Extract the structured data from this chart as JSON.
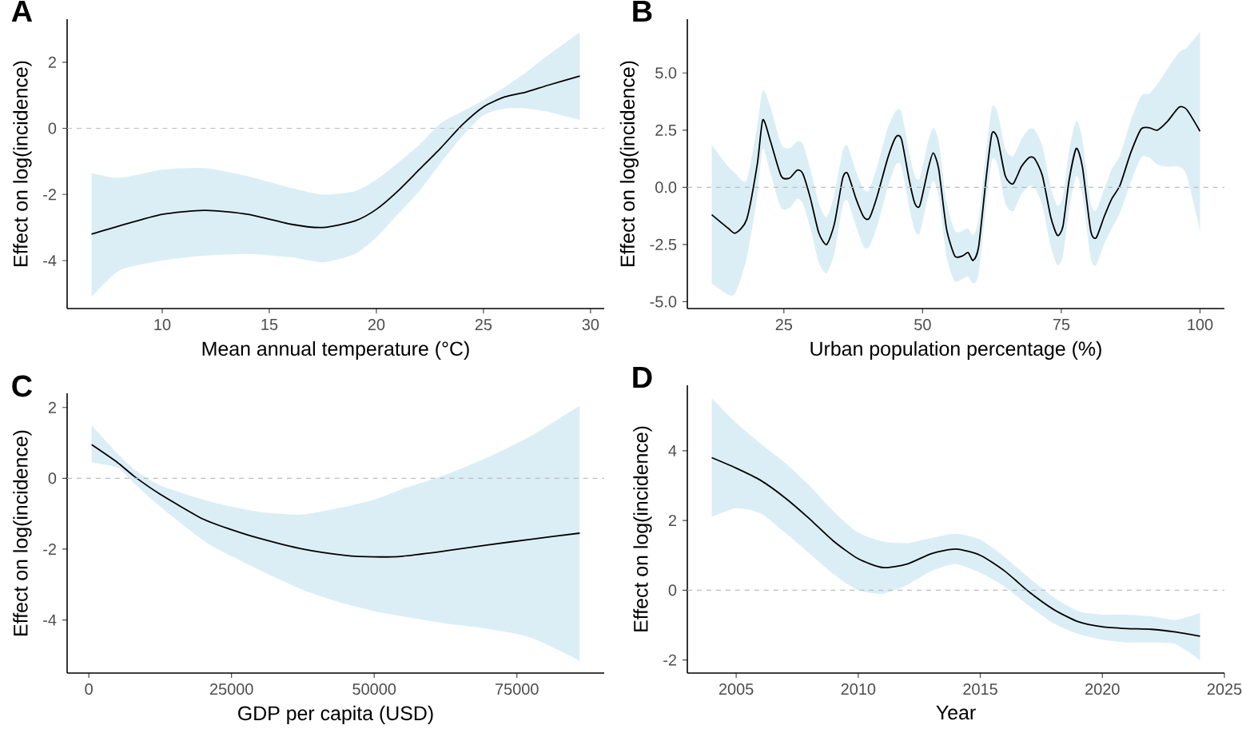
{
  "chart_data": [
    {
      "type": "line",
      "title": "A",
      "xlabel": "Mean annual temperature (°C)",
      "ylabel": "Effect on log(incidence)",
      "xlim": [
        5.56,
        30.64
      ],
      "ylim": [
        -5.45,
        3.3
      ],
      "xticks": [
        10,
        15,
        20,
        25,
        30
      ],
      "yticks": [
        -4,
        -2,
        0,
        2
      ],
      "ref_lines": [
        {
          "axis": "y",
          "value": 0,
          "color": "#bdbdbd",
          "line_style": "dashed"
        }
      ],
      "x": [
        6.7,
        8,
        10,
        12,
        14,
        16,
        17.5,
        19,
        20,
        21,
        22,
        23,
        24,
        25,
        26,
        27,
        28,
        29.5
      ],
      "series": [
        {
          "color": "#000000",
          "values": [
            -3.2,
            -2.95,
            -2.6,
            -2.48,
            -2.6,
            -2.9,
            -3.0,
            -2.8,
            -2.45,
            -1.9,
            -1.25,
            -0.6,
            0.1,
            0.65,
            0.95,
            1.1,
            1.3,
            1.58
          ],
          "upper": [
            -1.35,
            -1.5,
            -1.25,
            -1.2,
            -1.45,
            -1.8,
            -2.0,
            -1.9,
            -1.55,
            -1.05,
            -0.5,
            0.15,
            0.5,
            0.85,
            1.25,
            1.7,
            2.2,
            2.9
          ],
          "lower": [
            -5.1,
            -4.3,
            -4.0,
            -3.85,
            -3.8,
            -3.9,
            -4.05,
            -3.8,
            -3.3,
            -2.6,
            -1.9,
            -1.05,
            -0.25,
            0.4,
            0.6,
            0.6,
            0.5,
            0.25
          ]
        }
      ]
    },
    {
      "type": "line",
      "title": "B",
      "xlabel": "Urban population percentage (%)",
      "ylabel": "Effect on log(incidence)",
      "xlim": [
        7.6,
        104.4
      ],
      "ylim": [
        -5.3,
        7.35
      ],
      "xticks": [
        25,
        50,
        75,
        100
      ],
      "yticks": [
        {
          "value": -5,
          "label": "-5.0"
        },
        {
          "value": -2.5,
          "label": "-2.5"
        },
        {
          "value": 0,
          "label": "0.0"
        },
        {
          "value": 2.5,
          "label": "2.5"
        },
        {
          "value": 5,
          "label": "5.0"
        }
      ],
      "ref_lines": [
        {
          "axis": "y",
          "value": 0,
          "color": "#bdbdbd",
          "line_style": "dashed"
        }
      ],
      "x": [
        12,
        15,
        16.3,
        18.3,
        20.2,
        21.2,
        22.6,
        24.5,
        26,
        27.4,
        28.4,
        29.8,
        31.3,
        32.7,
        34.1,
        35.6,
        36.5,
        38,
        39.4,
        40.4,
        41.8,
        43.75,
        45.2,
        46.2,
        47.6,
        48.6,
        49.5,
        51,
        51.9,
        52.9,
        54.3,
        55.8,
        57.2,
        58.2,
        59.1,
        60.1,
        61.5,
        62.5,
        63.5,
        64.9,
        66.3,
        67.8,
        69.2,
        70.2,
        71.6,
        73.1,
        74.3,
        75.3,
        76.4,
        77.7,
        78.8,
        80.3,
        81.3,
        82.7,
        84.1,
        85.6,
        87.5,
        89.4,
        90.9,
        92.3,
        94.2,
        96.2,
        97.6,
        100
      ],
      "series": [
        {
          "color": "#000000",
          "values": [
            -1.2,
            -1.8,
            -2.0,
            -1.4,
            1.0,
            2.95,
            2.0,
            0.5,
            0.4,
            0.75,
            0.6,
            -0.5,
            -2.0,
            -2.5,
            -1.6,
            0.4,
            0.6,
            -0.5,
            -1.3,
            -1.35,
            -0.4,
            1.3,
            2.2,
            2.1,
            0.3,
            -0.7,
            -0.8,
            0.8,
            1.5,
            0.8,
            -1.8,
            -3.0,
            -3.0,
            -2.85,
            -3.2,
            -2.6,
            0.5,
            2.35,
            2.15,
            0.5,
            0.15,
            0.9,
            1.3,
            1.25,
            0.5,
            -1.3,
            -2.1,
            -1.7,
            0.3,
            1.7,
            0.9,
            -1.9,
            -2.2,
            -1.3,
            -0.5,
            0.1,
            1.5,
            2.55,
            2.6,
            2.5,
            2.9,
            3.5,
            3.4,
            2.45
          ],
          "upper": [
            1.85,
            0.9,
            0.6,
            0.3,
            2.7,
            4.25,
            3.5,
            1.9,
            1.7,
            2.0,
            1.9,
            0.8,
            -0.7,
            -1.3,
            -0.3,
            1.6,
            1.8,
            0.7,
            -0.1,
            -0.1,
            0.9,
            2.6,
            3.35,
            3.3,
            1.5,
            0.5,
            0.4,
            2.0,
            2.6,
            2.0,
            -0.6,
            -1.9,
            -1.9,
            -1.8,
            -2.1,
            -1.4,
            1.7,
            3.5,
            3.3,
            1.7,
            1.35,
            2.1,
            2.55,
            2.5,
            1.8,
            0.0,
            -0.8,
            -0.4,
            1.6,
            2.9,
            2.1,
            -0.7,
            -1.0,
            -0.1,
            0.8,
            1.4,
            2.9,
            4.0,
            4.1,
            4.5,
            5.2,
            5.9,
            6.1,
            6.8
          ],
          "lower": [
            -4.2,
            -4.7,
            -4.6,
            -3.1,
            -0.4,
            1.7,
            0.6,
            -0.9,
            -0.9,
            -0.5,
            -0.7,
            -1.8,
            -3.3,
            -3.75,
            -2.9,
            -0.8,
            -0.6,
            -1.7,
            -2.6,
            -2.6,
            -1.7,
            0.0,
            1.0,
            0.9,
            -0.9,
            -1.9,
            -2.0,
            -0.4,
            0.3,
            -0.4,
            -3.0,
            -4.1,
            -4.0,
            -3.9,
            -4.2,
            -3.8,
            -0.7,
            1.2,
            1.0,
            -0.7,
            -1.05,
            -0.3,
            0.05,
            0.0,
            -0.8,
            -2.6,
            -3.4,
            -3.0,
            -1.0,
            0.5,
            -0.3,
            -3.1,
            -3.4,
            -2.5,
            -1.8,
            -1.1,
            0.2,
            1.3,
            1.3,
            1.0,
            0.9,
            0.9,
            0.5,
            -1.9
          ]
        }
      ]
    },
    {
      "type": "line",
      "title": "C",
      "xlabel": "GDP per capita (USD)",
      "ylabel": "Effect on log(incidence)",
      "xlim": [
        -3800,
        90300
      ],
      "ylim": [
        -5.5,
        2.4
      ],
      "xticks": [
        0,
        25000,
        50000,
        75000
      ],
      "yticks": [
        -4,
        -2,
        0,
        2
      ],
      "ref_lines": [
        {
          "axis": "y",
          "value": 0,
          "color": "#bdbdbd",
          "line_style": "dashed"
        }
      ],
      "x": [
        500,
        5000,
        8000,
        12500,
        20000,
        25000,
        30000,
        37500,
        45000,
        50000,
        55000,
        62500,
        70000,
        77500,
        86000
      ],
      "series": [
        {
          "color": "#000000",
          "values": [
            0.95,
            0.45,
            0.05,
            -0.45,
            -1.15,
            -1.45,
            -1.7,
            -2.0,
            -2.18,
            -2.22,
            -2.2,
            -2.05,
            -1.88,
            -1.72,
            -1.55
          ],
          "upper": [
            1.5,
            0.7,
            0.25,
            -0.2,
            -0.6,
            -0.8,
            -0.95,
            -1.02,
            -0.8,
            -0.6,
            -0.3,
            0.1,
            0.6,
            1.2,
            2.05
          ],
          "lower": [
            0.45,
            0.3,
            -0.15,
            -0.8,
            -1.75,
            -2.2,
            -2.6,
            -3.15,
            -3.55,
            -3.75,
            -3.9,
            -4.1,
            -4.25,
            -4.5,
            -5.15
          ]
        }
      ]
    },
    {
      "type": "line",
      "title": "D",
      "xlabel": "Year",
      "ylabel": "Effect on log(incidence)",
      "xlim": [
        2003,
        2025
      ],
      "ylim": [
        -2.375,
        5.875
      ],
      "xticks": [
        2005,
        2010,
        2015,
        2020,
        2025
      ],
      "yticks": [
        -2,
        0,
        2,
        4
      ],
      "ref_lines": [
        {
          "axis": "y",
          "value": 0,
          "color": "#bdbdbd",
          "line_style": "dashed"
        }
      ],
      "x": [
        2004,
        2005,
        2006,
        2007,
        2008,
        2009,
        2010,
        2011,
        2012,
        2013,
        2014,
        2015,
        2016,
        2017,
        2018,
        2019,
        2020,
        2021,
        2022,
        2023,
        2024
      ],
      "series": [
        {
          "color": "#000000",
          "values": [
            3.8,
            3.5,
            3.15,
            2.65,
            2.05,
            1.4,
            0.9,
            0.65,
            0.75,
            1.05,
            1.18,
            1.0,
            0.55,
            -0.05,
            -0.55,
            -0.9,
            -1.05,
            -1.1,
            -1.12,
            -1.2,
            -1.32
          ],
          "upper": [
            5.5,
            4.8,
            4.2,
            3.65,
            3.0,
            2.25,
            1.65,
            1.4,
            1.35,
            1.5,
            1.62,
            1.45,
            0.95,
            0.35,
            -0.2,
            -0.6,
            -0.7,
            -0.7,
            -0.75,
            -0.85,
            -0.65
          ],
          "lower": [
            2.1,
            2.35,
            2.2,
            1.65,
            1.05,
            0.45,
            0.0,
            -0.1,
            0.15,
            0.55,
            0.75,
            0.5,
            0.1,
            -0.45,
            -0.95,
            -1.25,
            -1.42,
            -1.5,
            -1.5,
            -1.55,
            -2.0
          ]
        }
      ]
    }
  ]
}
